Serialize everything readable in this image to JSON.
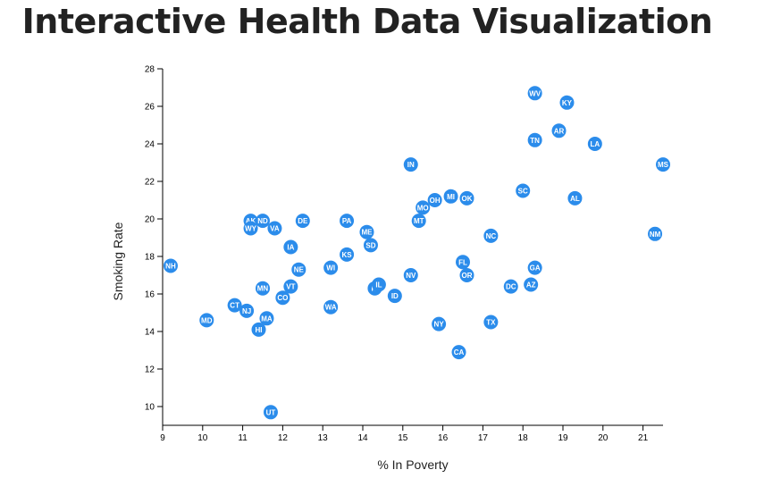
{
  "page": {
    "title": "Interactive Health Data Visualization"
  },
  "chart_data": {
    "type": "scatter",
    "xlabel": "% In Poverty",
    "ylabel": "Smoking Rate",
    "xlim": [
      9,
      21.5
    ],
    "ylim": [
      9,
      28
    ],
    "x_ticks": [
      9,
      10,
      11,
      12,
      13,
      14,
      15,
      16,
      17,
      18,
      19,
      20,
      21
    ],
    "y_ticks": [
      10,
      12,
      14,
      16,
      18,
      20,
      22,
      24,
      26,
      28
    ],
    "marker_color": "#2b8ceb",
    "label_color": "#ffffff",
    "points": [
      {
        "label": "NH",
        "x": 9.2,
        "y": 17.5
      },
      {
        "label": "MD",
        "x": 10.1,
        "y": 14.6
      },
      {
        "label": "CT",
        "x": 10.8,
        "y": 15.4
      },
      {
        "label": "NJ",
        "x": 11.1,
        "y": 15.1
      },
      {
        "label": "AK",
        "x": 11.2,
        "y": 19.9
      },
      {
        "label": "WY",
        "x": 11.2,
        "y": 19.5
      },
      {
        "label": "ND",
        "x": 11.5,
        "y": 19.9
      },
      {
        "label": "HI",
        "x": 11.4,
        "y": 14.1
      },
      {
        "label": "MN",
        "x": 11.5,
        "y": 16.3
      },
      {
        "label": "MA",
        "x": 11.6,
        "y": 14.7
      },
      {
        "label": "UT",
        "x": 11.7,
        "y": 9.7
      },
      {
        "label": "VA",
        "x": 11.8,
        "y": 19.5
      },
      {
        "label": "CO",
        "x": 12.0,
        "y": 15.8
      },
      {
        "label": "IA",
        "x": 12.2,
        "y": 18.5
      },
      {
        "label": "VT",
        "x": 12.2,
        "y": 16.4
      },
      {
        "label": "NE",
        "x": 12.4,
        "y": 17.3
      },
      {
        "label": "DE",
        "x": 12.5,
        "y": 19.9
      },
      {
        "label": "WI",
        "x": 13.2,
        "y": 17.4
      },
      {
        "label": "WA",
        "x": 13.2,
        "y": 15.3
      },
      {
        "label": "PA",
        "x": 13.6,
        "y": 19.9
      },
      {
        "label": "KS",
        "x": 13.6,
        "y": 18.1
      },
      {
        "label": "ME",
        "x": 14.1,
        "y": 19.3
      },
      {
        "label": "SD",
        "x": 14.2,
        "y": 18.6
      },
      {
        "label": "RI",
        "x": 14.3,
        "y": 16.3
      },
      {
        "label": "IL",
        "x": 14.4,
        "y": 16.5
      },
      {
        "label": "ID",
        "x": 14.8,
        "y": 15.9
      },
      {
        "label": "IN",
        "x": 15.2,
        "y": 22.9
      },
      {
        "label": "NV",
        "x": 15.2,
        "y": 17.0
      },
      {
        "label": "MT",
        "x": 15.4,
        "y": 19.9
      },
      {
        "label": "MO",
        "x": 15.5,
        "y": 20.6
      },
      {
        "label": "OH",
        "x": 15.8,
        "y": 21.0
      },
      {
        "label": "NY",
        "x": 15.9,
        "y": 14.4
      },
      {
        "label": "MI",
        "x": 16.2,
        "y": 21.2
      },
      {
        "label": "CA",
        "x": 16.4,
        "y": 12.9
      },
      {
        "label": "FL",
        "x": 16.5,
        "y": 17.7
      },
      {
        "label": "OK",
        "x": 16.6,
        "y": 21.1
      },
      {
        "label": "OR",
        "x": 16.6,
        "y": 17.0
      },
      {
        "label": "NC",
        "x": 17.2,
        "y": 19.1
      },
      {
        "label": "TX",
        "x": 17.2,
        "y": 14.5
      },
      {
        "label": "DC",
        "x": 17.7,
        "y": 16.4
      },
      {
        "label": "SC",
        "x": 18.0,
        "y": 21.5
      },
      {
        "label": "WV",
        "x": 18.3,
        "y": 26.7
      },
      {
        "label": "TN",
        "x": 18.3,
        "y": 24.2
      },
      {
        "label": "GA",
        "x": 18.3,
        "y": 17.4
      },
      {
        "label": "AZ",
        "x": 18.2,
        "y": 16.5
      },
      {
        "label": "AR",
        "x": 18.9,
        "y": 24.7
      },
      {
        "label": "KY",
        "x": 19.1,
        "y": 26.2
      },
      {
        "label": "AL",
        "x": 19.3,
        "y": 21.1
      },
      {
        "label": "LA",
        "x": 19.8,
        "y": 24.0
      },
      {
        "label": "NM",
        "x": 21.3,
        "y": 19.2
      },
      {
        "label": "MS",
        "x": 21.5,
        "y": 22.9
      }
    ]
  }
}
